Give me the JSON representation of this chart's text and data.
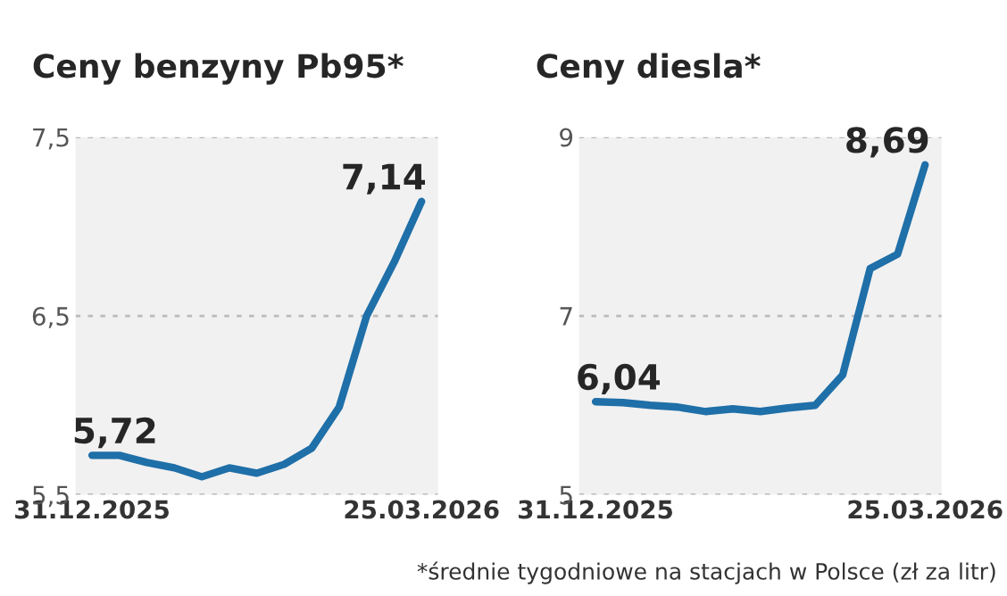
{
  "chart_data": [
    {
      "type": "line",
      "title": "Ceny benzyny Pb95*",
      "categories": [
        "31.12.2025",
        null,
        null,
        null,
        null,
        null,
        null,
        null,
        null,
        null,
        null,
        null,
        "25.03.2026"
      ],
      "series": [
        {
          "color": "#1f6fa8",
          "values": [
            5.72,
            5.72,
            5.68,
            5.65,
            5.6,
            5.65,
            5.62,
            5.67,
            5.76,
            5.99,
            6.5,
            6.8,
            7.14
          ],
          "value_labels": [
            "5,72",
            null,
            null,
            null,
            null,
            null,
            null,
            null,
            null,
            null,
            null,
            null,
            "7,14"
          ]
        }
      ],
      "ylim": [
        5.5,
        7.5
      ],
      "yticks": [
        {
          "value": 5.5,
          "label": "5,5"
        },
        {
          "value": 6.5,
          "label": "6,5"
        },
        {
          "value": 7.5,
          "label": "7,5"
        }
      ],
      "grid": "y",
      "line_style": "solid",
      "marker": "none"
    },
    {
      "type": "line",
      "title": "Ceny diesla*",
      "categories": [
        "31.12.2025",
        null,
        null,
        null,
        null,
        null,
        null,
        null,
        null,
        null,
        null,
        null,
        "25.03.2026"
      ],
      "series": [
        {
          "color": "#1f6fa8",
          "values": [
            6.04,
            6.03,
            6.0,
            5.98,
            5.93,
            5.96,
            5.93,
            5.97,
            6.0,
            6.34,
            7.53,
            7.69,
            8.69
          ],
          "value_labels": [
            "6,04",
            null,
            null,
            null,
            null,
            null,
            null,
            null,
            null,
            null,
            null,
            null,
            "8,69"
          ]
        }
      ],
      "ylim": [
        5,
        9
      ],
      "yticks": [
        5,
        7,
        9
      ],
      "grid": "y",
      "line_style": "solid",
      "marker": "none",
      "annotations": [
        "*średnie tygodniowe na stacjach w Polsce (zł za litr)"
      ]
    }
  ]
}
